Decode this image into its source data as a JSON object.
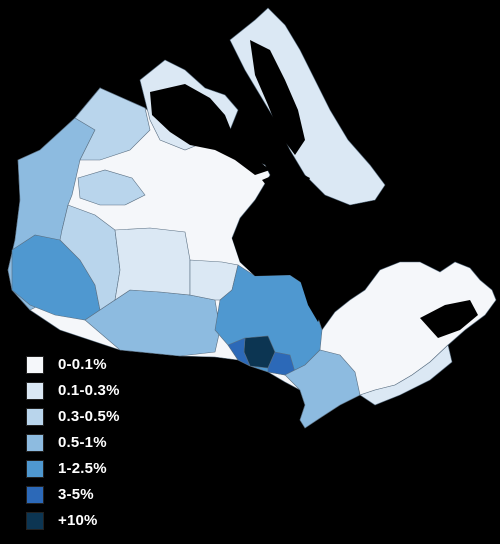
{
  "map": {
    "colors": {
      "background": "#000000",
      "water": "#000000",
      "border": "#5a6f82",
      "bin0": "#f5f7fa",
      "bin1": "#dbe8f4",
      "bin2": "#b9d5ec",
      "bin3": "#8dbbe0",
      "bin4": "#4f98d0",
      "bin5": "#2c69b8",
      "bin6": "#0c3552"
    }
  },
  "legend": {
    "items": [
      {
        "label": "0-0.1%",
        "color": "#f5f7fa"
      },
      {
        "label": "0.1-0.3%",
        "color": "#dbe8f4"
      },
      {
        "label": "0.3-0.5%",
        "color": "#b9d5ec"
      },
      {
        "label": "0.5-1%",
        "color": "#8dbbe0"
      },
      {
        "label": "1-2.5%",
        "color": "#4f98d0"
      },
      {
        "label": "3-5%",
        "color": "#2c69b8"
      },
      {
        "label": "+10%",
        "color": "#0c3552"
      }
    ]
  }
}
